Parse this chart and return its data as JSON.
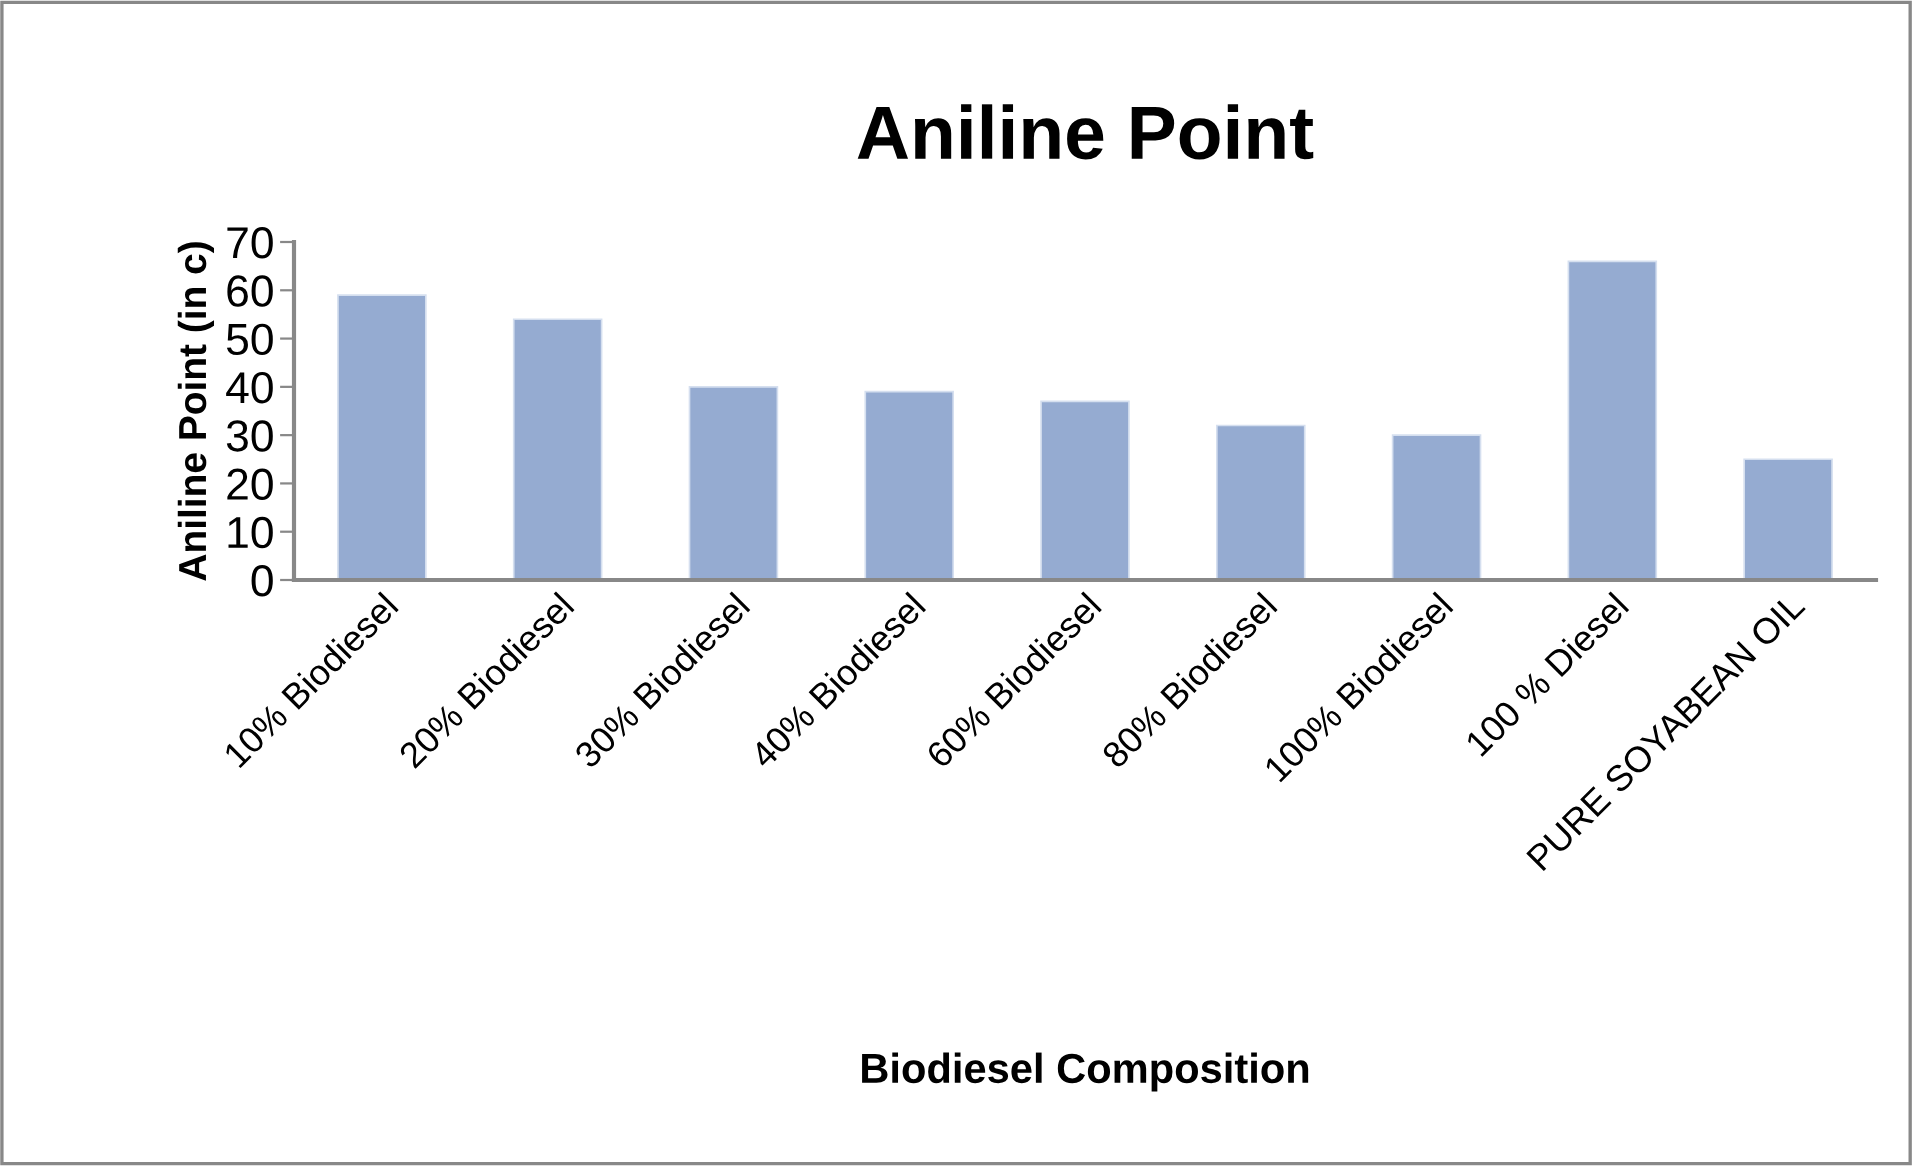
{
  "chart_data": {
    "type": "bar",
    "title": "Aniline Point",
    "xlabel": "Biodiesel Composition",
    "ylabel": "Aniline Point (in c)",
    "categories": [
      "10% Biodiesel",
      "20% Biodiesel",
      "30% Biodiesel",
      "40% Biodiesel",
      "60% Biodiesel",
      "80% Biodiesel",
      "100% Biodiesel",
      "100 % Diesel",
      "PURE SOYABEAN OIL"
    ],
    "values": [
      59,
      54,
      40,
      39,
      37,
      32,
      30,
      66,
      25
    ],
    "color": "#95abd1",
    "ylim": [
      0,
      70
    ],
    "yticks": [
      0,
      10,
      20,
      30,
      40,
      50,
      60,
      70
    ],
    "grid": false,
    "legend": false
  }
}
